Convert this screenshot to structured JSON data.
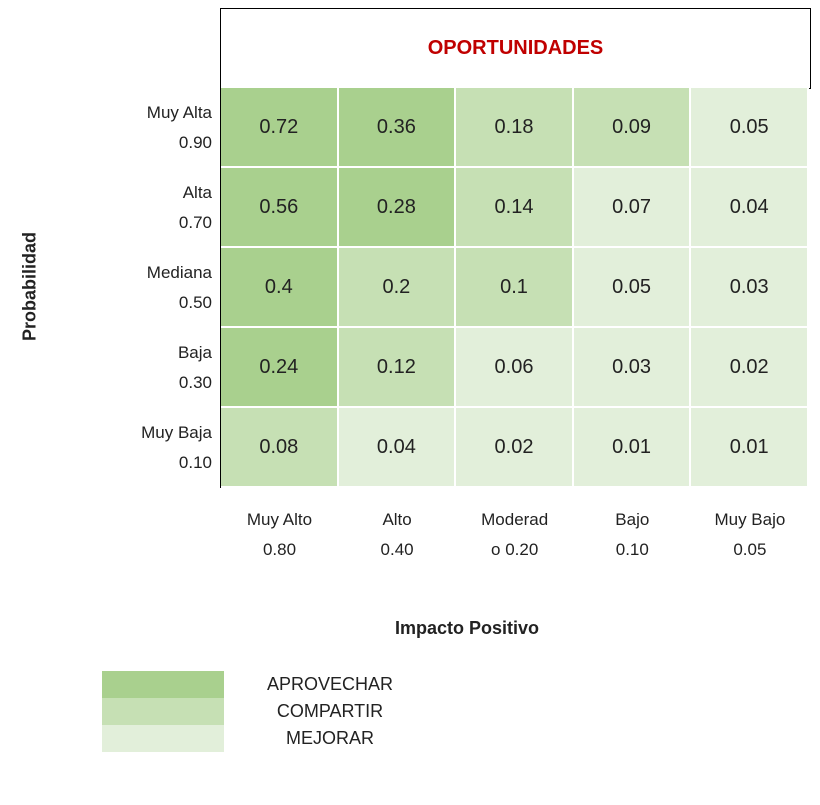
{
  "header": {
    "title": "OPORTUNIDADES"
  },
  "rows": [
    {
      "label": [
        "Muy Alta",
        "0.90"
      ],
      "cells": [
        {
          "value": 0.72,
          "color": "#a9d08e"
        },
        {
          "value": 0.36,
          "color": "#a9d08e"
        },
        {
          "value": 0.18,
          "color": "#c6e0b4"
        },
        {
          "value": 0.09,
          "color": "#c6e0b4"
        },
        {
          "value": 0.05,
          "color": "#e2efda"
        }
      ]
    },
    {
      "label": [
        "Alta",
        "0.70"
      ],
      "cells": [
        {
          "value": 0.56,
          "color": "#a9d08e"
        },
        {
          "value": 0.28,
          "color": "#a9d08e"
        },
        {
          "value": 0.14,
          "color": "#c6e0b4"
        },
        {
          "value": 0.07,
          "color": "#e2efda"
        },
        {
          "value": 0.04,
          "color": "#e2efda"
        }
      ]
    },
    {
      "label": [
        "Mediana",
        "0.50"
      ],
      "cells": [
        {
          "value": 0.4,
          "color": "#a9d08e"
        },
        {
          "value": 0.2,
          "color": "#c6e0b4"
        },
        {
          "value": 0.1,
          "color": "#c6e0b4"
        },
        {
          "value": 0.05,
          "color": "#e2efda"
        },
        {
          "value": 0.03,
          "color": "#e2efda"
        }
      ]
    },
    {
      "label": [
        "Baja",
        "0.30"
      ],
      "cells": [
        {
          "value": 0.24,
          "color": "#a9d08e"
        },
        {
          "value": 0.12,
          "color": "#c6e0b4"
        },
        {
          "value": 0.06,
          "color": "#e2efda"
        },
        {
          "value": 0.03,
          "color": "#e2efda"
        },
        {
          "value": 0.02,
          "color": "#e2efda"
        }
      ]
    },
    {
      "label": [
        "Muy Baja",
        "0.10"
      ],
      "cells": [
        {
          "value": 0.08,
          "color": "#c6e0b4"
        },
        {
          "value": 0.04,
          "color": "#e2efda"
        },
        {
          "value": 0.02,
          "color": "#e2efda"
        },
        {
          "value": 0.01,
          "color": "#e2efda"
        },
        {
          "value": 0.01,
          "color": "#e2efda"
        }
      ]
    }
  ],
  "columns": [
    [
      "Muy Alto",
      "0.80"
    ],
    [
      "Alto",
      "0.40"
    ],
    [
      "Moderad",
      "o 0.20"
    ],
    [
      "Bajo",
      "0.10"
    ],
    [
      "Muy Bajo",
      "0.05"
    ]
  ],
  "y_axis_label": "Probabilidad",
  "x_axis_label": "Impacto Positivo",
  "legend": [
    {
      "name": "APROVECHAR",
      "color": "#a9d08e"
    },
    {
      "name": "COMPARTIR",
      "color": "#c6e0b4"
    },
    {
      "name": "MEJORAR",
      "color": "#e2efda"
    }
  ]
}
